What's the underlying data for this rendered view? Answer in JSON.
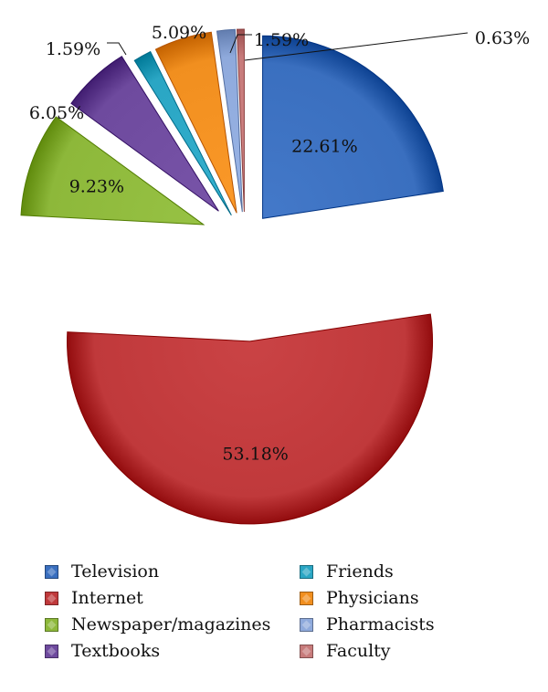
{
  "chart_data": {
    "type": "pie",
    "title": "",
    "slices": [
      {
        "label": "Television",
        "value": 22.61,
        "value_label": "22.61%",
        "color": "#3A6FBF"
      },
      {
        "label": "Internet",
        "value": 53.18,
        "value_label": "53.18%",
        "color": "#C0393B"
      },
      {
        "label": "Newspaper/magazines",
        "value": 9.23,
        "value_label": "9.23%",
        "color": "#8DB83A"
      },
      {
        "label": "Textbooks",
        "value": 6.05,
        "value_label": "6.05%",
        "color": "#6E4A9E"
      },
      {
        "label": "Friends",
        "value": 1.59,
        "value_label": "1.59%",
        "color": "#2AA6C4"
      },
      {
        "label": "Physicians",
        "value": 5.09,
        "value_label": "5.09%",
        "color": "#F18F1F"
      },
      {
        "label": "Pharmacists",
        "value": 1.59,
        "value_label": "1.59%",
        "color": "#8FAADC"
      },
      {
        "label": "Faculty",
        "value": 0.63,
        "value_label": "0.63%",
        "color": "#C77B7B"
      }
    ],
    "legend_position": "bottom"
  }
}
